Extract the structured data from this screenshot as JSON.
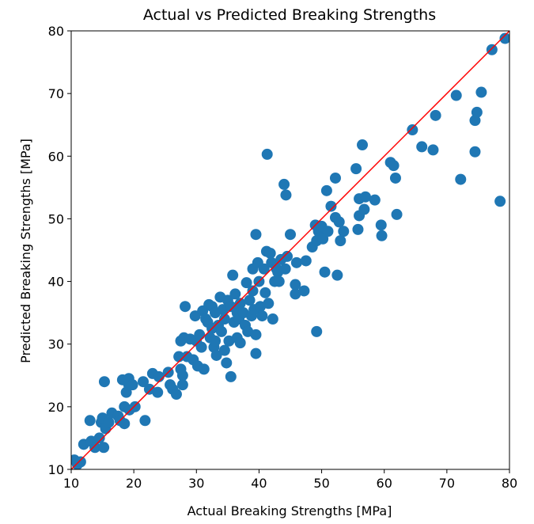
{
  "chart_data": {
    "type": "scatter",
    "title": "Actual vs Predicted Breaking Strengths",
    "xlabel": "Actual Breaking Strengths [MPa]",
    "ylabel": "Predicted Breaking Strengths [MPa]",
    "xlim": [
      10,
      80
    ],
    "ylim": [
      10,
      80
    ],
    "xticks": [
      "10",
      "20",
      "30",
      "40",
      "50",
      "60",
      "70",
      "80"
    ],
    "yticks": [
      "10",
      "20",
      "30",
      "40",
      "50",
      "60",
      "70",
      "80"
    ],
    "grid": false,
    "point_color": "#1f77b4",
    "reference_line": {
      "color": "#ff0000",
      "from": [
        10,
        10
      ],
      "to": [
        80,
        80
      ]
    },
    "points": [
      [
        10.5,
        11.5
      ],
      [
        11,
        10.8
      ],
      [
        11.5,
        11.2
      ],
      [
        12,
        14
      ],
      [
        13,
        17.8
      ],
      [
        13.2,
        14.5
      ],
      [
        13.8,
        13.5
      ],
      [
        14.5,
        15
      ],
      [
        14.8,
        17.5
      ],
      [
        15,
        18.2
      ],
      [
        15.2,
        13.5
      ],
      [
        15.3,
        24
      ],
      [
        15.5,
        16.5
      ],
      [
        16,
        17.5
      ],
      [
        16.5,
        19
      ],
      [
        17.5,
        18.5
      ],
      [
        17.8,
        17.8
      ],
      [
        18.2,
        24.3
      ],
      [
        18.5,
        20
      ],
      [
        18.5,
        17.3
      ],
      [
        18.8,
        22.3
      ],
      [
        19.2,
        23.5
      ],
      [
        19.2,
        24.5
      ],
      [
        19.8,
        23.5
      ],
      [
        19.3,
        19.5
      ],
      [
        20.2,
        20
      ],
      [
        21.5,
        24
      ],
      [
        21.8,
        17.8
      ],
      [
        22.5,
        22.8
      ],
      [
        23,
        25.3
      ],
      [
        23.8,
        22.3
      ],
      [
        24,
        24.8
      ],
      [
        25.5,
        25.5
      ],
      [
        25.8,
        23.5
      ],
      [
        26.2,
        22.8
      ],
      [
        26.8,
        22
      ],
      [
        27.2,
        28
      ],
      [
        27.5,
        30.5
      ],
      [
        27.5,
        26
      ],
      [
        27.8,
        25
      ],
      [
        27.8,
        23.5
      ],
      [
        28,
        31
      ],
      [
        28.2,
        36
      ],
      [
        28.5,
        28
      ],
      [
        29,
        30.8
      ],
      [
        29.5,
        27.5
      ],
      [
        29.8,
        34.5
      ],
      [
        30,
        30.5
      ],
      [
        30.2,
        26.5
      ],
      [
        30.5,
        31.5
      ],
      [
        30.8,
        29.5
      ],
      [
        31,
        35.3
      ],
      [
        31.2,
        26
      ],
      [
        31.5,
        34
      ],
      [
        31.8,
        33.5
      ],
      [
        32,
        36.3
      ],
      [
        32.2,
        31
      ],
      [
        32.5,
        32.5
      ],
      [
        32.5,
        36
      ],
      [
        32.8,
        29.5
      ],
      [
        33,
        30.5
      ],
      [
        33,
        35
      ],
      [
        33.2,
        28.2
      ],
      [
        33.5,
        33
      ],
      [
        33.8,
        37.5
      ],
      [
        34,
        32
      ],
      [
        34.2,
        35.5
      ],
      [
        34.5,
        29
      ],
      [
        34.5,
        34
      ],
      [
        34.8,
        27
      ],
      [
        35,
        37
      ],
      [
        35.2,
        30.5
      ],
      [
        35.5,
        36
      ],
      [
        35.5,
        24.8
      ],
      [
        35.8,
        41
      ],
      [
        36,
        33.5
      ],
      [
        36.2,
        38
      ],
      [
        36.5,
        35
      ],
      [
        36.5,
        31
      ],
      [
        36.8,
        34
      ],
      [
        37,
        36.5
      ],
      [
        37,
        30.2
      ],
      [
        37.5,
        35
      ],
      [
        37.8,
        33
      ],
      [
        38,
        39.8
      ],
      [
        38.2,
        32
      ],
      [
        38.5,
        37
      ],
      [
        38.8,
        34.5
      ],
      [
        39,
        42
      ],
      [
        39,
        38.5
      ],
      [
        39.2,
        35.5
      ],
      [
        39.5,
        31.5
      ],
      [
        39.5,
        28.5
      ],
      [
        39.5,
        47.5
      ],
      [
        39.8,
        43
      ],
      [
        40,
        40
      ],
      [
        40.2,
        36
      ],
      [
        40.5,
        34.5
      ],
      [
        40.8,
        42
      ],
      [
        41,
        38.2
      ],
      [
        41.2,
        44.8
      ],
      [
        41.3,
        60.3
      ],
      [
        41.5,
        36.5
      ],
      [
        41.8,
        44.5
      ],
      [
        42,
        43
      ],
      [
        42.2,
        34
      ],
      [
        42.5,
        40
      ],
      [
        42.8,
        42
      ],
      [
        43,
        41.5
      ],
      [
        43.2,
        40
      ],
      [
        43.5,
        43.5
      ],
      [
        44,
        55.5
      ],
      [
        44.2,
        42
      ],
      [
        44.3,
        53.8
      ],
      [
        44.5,
        44
      ],
      [
        45,
        47.5
      ],
      [
        45.8,
        38
      ],
      [
        45.8,
        39.5
      ],
      [
        46,
        43
      ],
      [
        47.2,
        38.5
      ],
      [
        47.5,
        43.3
      ],
      [
        48.5,
        45.5
      ],
      [
        49,
        49
      ],
      [
        49.2,
        46.5
      ],
      [
        49.2,
        32
      ],
      [
        49.5,
        48
      ],
      [
        49.8,
        47
      ],
      [
        50,
        48.8
      ],
      [
        50.2,
        46.8
      ],
      [
        50.5,
        41.5
      ],
      [
        50.8,
        54.5
      ],
      [
        51,
        48
      ],
      [
        51.5,
        52
      ],
      [
        52.2,
        56.5
      ],
      [
        52.2,
        50.2
      ],
      [
        52.5,
        41
      ],
      [
        52.8,
        49.5
      ],
      [
        53,
        46.5
      ],
      [
        53.5,
        48
      ],
      [
        55.5,
        58
      ],
      [
        55.8,
        48.3
      ],
      [
        56,
        53.2
      ],
      [
        56,
        50.5
      ],
      [
        56.5,
        61.8
      ],
      [
        56.8,
        51.5
      ],
      [
        57,
        53.5
      ],
      [
        58.5,
        53
      ],
      [
        59.5,
        49
      ],
      [
        59.6,
        47.3
      ],
      [
        61,
        59
      ],
      [
        61.5,
        58.5
      ],
      [
        61.8,
        56.5
      ],
      [
        62,
        50.7
      ],
      [
        64.5,
        64.2
      ],
      [
        66,
        61.5
      ],
      [
        67.8,
        61
      ],
      [
        68.2,
        66.5
      ],
      [
        71.5,
        69.7
      ],
      [
        72.2,
        56.3
      ],
      [
        74.5,
        65.7
      ],
      [
        74.5,
        60.7
      ],
      [
        74.8,
        67
      ],
      [
        75.5,
        70.2
      ],
      [
        77.2,
        77
      ],
      [
        78.5,
        52.8
      ],
      [
        79.3,
        78.8
      ]
    ]
  }
}
